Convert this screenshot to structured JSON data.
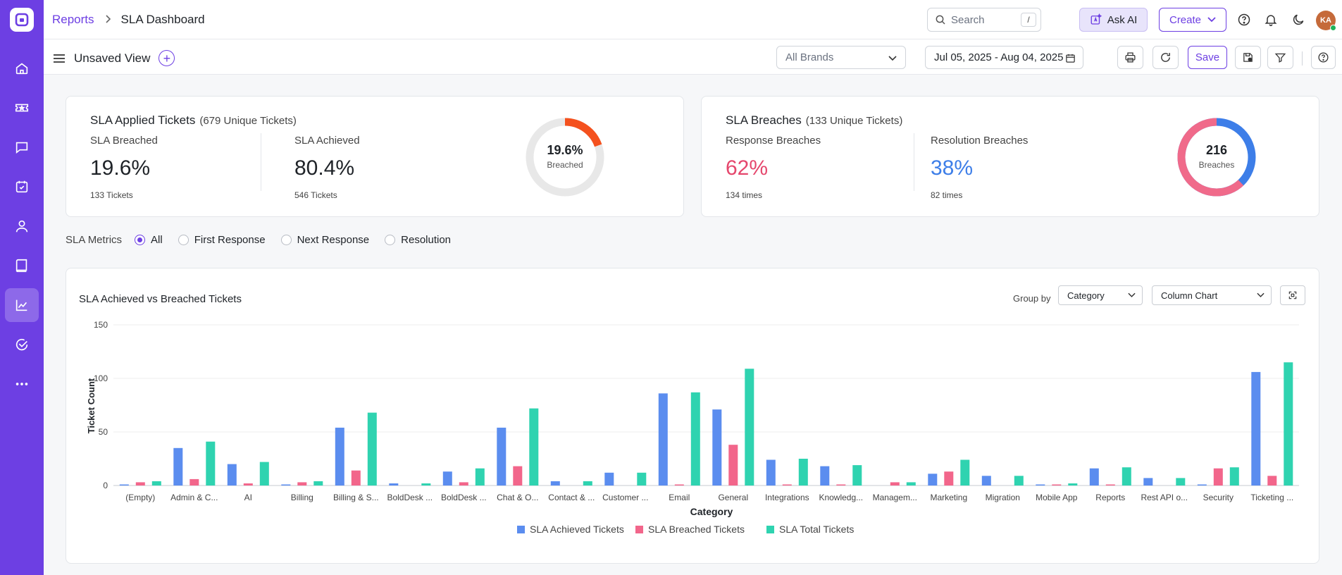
{
  "header": {
    "breadcrumb_parent": "Reports",
    "breadcrumb_current": "SLA Dashboard",
    "search_placeholder": "Search",
    "search_shortcut": "/",
    "ask_ai_label": "Ask AI",
    "create_label": "Create",
    "avatar_initials": "KA",
    "colors": {
      "brand": "#6d3fe3",
      "avatar": "#c56a3a",
      "online": "#1fb35a"
    }
  },
  "sidebar": {
    "items": [
      {
        "icon": "home-icon"
      },
      {
        "icon": "ticket-icon"
      },
      {
        "icon": "chat-icon"
      },
      {
        "icon": "calendar-check-icon"
      },
      {
        "icon": "contact-icon"
      },
      {
        "icon": "book-icon"
      },
      {
        "icon": "reports-chart-icon",
        "active": true
      },
      {
        "icon": "check-circle-icon"
      },
      {
        "icon": "more-icon"
      }
    ]
  },
  "toolbar": {
    "view_name": "Unsaved View",
    "brands_select": "All Brands",
    "date_range": "Jul 05, 2025 - Aug 04, 2025",
    "save_label": "Save"
  },
  "sla_applied": {
    "title": "SLA Applied Tickets",
    "subtitle": "(679 Unique Tickets)",
    "breached_label": "SLA Breached",
    "breached_value": "19.6%",
    "breached_count": "133 Tickets",
    "achieved_label": "SLA Achieved",
    "achieved_value": "80.4%",
    "achieved_count": "546 Tickets",
    "donut_value": "19.6%",
    "donut_caption": "Breached",
    "donut_fraction": 0.196,
    "donut_color": "#f4511e"
  },
  "sla_breaches": {
    "title": "SLA Breaches",
    "subtitle": "(133 Unique Tickets)",
    "response_label": "Response Breaches",
    "response_value": "62%",
    "response_count": "134 times",
    "resolution_label": "Resolution Breaches",
    "resolution_value": "38%",
    "resolution_count": "82 times",
    "donut_value": "216",
    "donut_caption": "Breaches",
    "response_fraction": 0.62,
    "response_color": "#f06a8a",
    "resolution_color": "#3d7ee8"
  },
  "metrics": {
    "label": "SLA Metrics",
    "options": [
      "All",
      "First Response",
      "Next Response",
      "Resolution"
    ],
    "selected": "All"
  },
  "chart_panel": {
    "title": "SLA Achieved vs Breached Tickets",
    "group_by_label": "Group by",
    "group_by_value": "Category",
    "chart_type_value": "Column Chart"
  },
  "chart_data": {
    "type": "bar",
    "xlabel": "Category",
    "ylabel": "Ticket Count",
    "ylim": [
      0,
      150
    ],
    "yticks": [
      0,
      50,
      100,
      150
    ],
    "grid": true,
    "legend_position": "bottom",
    "categories": [
      "(Empty)",
      "Admin & C...",
      "AI",
      "Billing",
      "Billing & S...",
      "BoldDesk ...",
      "BoldDesk ...",
      "Chat & O...",
      "Contact & ...",
      "Customer ...",
      "Email",
      "General",
      "Integrations",
      "Knowledg...",
      "Managem...",
      "Marketing",
      "Migration",
      "Mobile App",
      "Reports",
      "Rest API o...",
      "Security",
      "Ticketing ..."
    ],
    "series": [
      {
        "name": "SLA Achieved Tickets",
        "color": "#5b8def",
        "values": [
          1,
          35,
          20,
          1,
          54,
          2,
          13,
          54,
          4,
          12,
          86,
          71,
          24,
          18,
          0,
          11,
          9,
          1,
          16,
          7,
          1,
          106
        ]
      },
      {
        "name": "SLA Breached Tickets",
        "color": "#f2668b",
        "values": [
          3,
          6,
          2,
          3,
          14,
          0,
          3,
          18,
          0,
          0,
          1,
          38,
          1,
          1,
          3,
          13,
          0,
          1,
          1,
          0,
          16,
          9
        ]
      },
      {
        "name": "SLA Total Tickets",
        "color": "#2fd3b0",
        "values": [
          4,
          41,
          22,
          4,
          68,
          2,
          16,
          72,
          4,
          12,
          87,
          109,
          25,
          19,
          3,
          24,
          9,
          2,
          17,
          7,
          17,
          115
        ]
      }
    ]
  }
}
